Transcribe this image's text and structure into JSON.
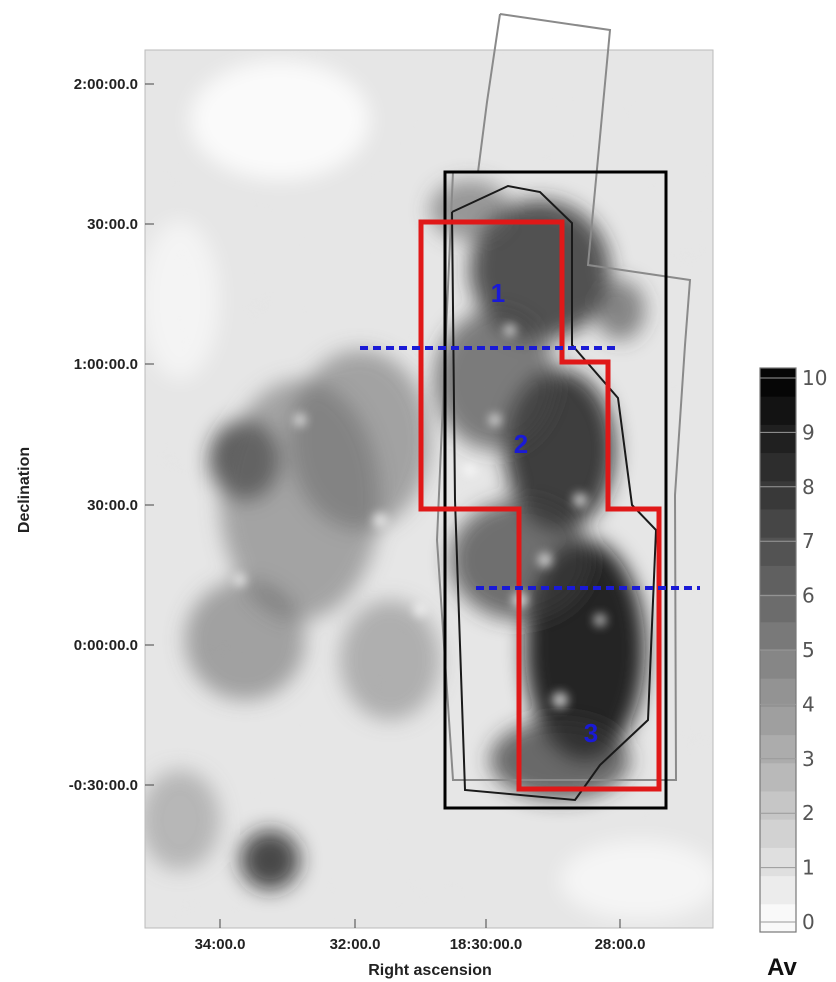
{
  "map": {
    "ylabel": "Declination",
    "xlabel": "Right ascension",
    "yticks": [
      "2:00:00.0",
      "30:00.0",
      "1:00:00.0",
      "30:00.0",
      "0:00:00.0",
      "-0:30:00.0"
    ],
    "xticks": [
      "34:00.0",
      "32:00.0",
      "18:30:00.0",
      "28:00.0"
    ],
    "regions": [
      "1",
      "2",
      "3"
    ],
    "colors": {
      "region_outline": "#e01818",
      "region_label": "#1a1ad6",
      "divider": "#1a1ad6",
      "survey_box": "#000000",
      "footprint_thin": "#1a1a1a",
      "footprint_gray": "#8a8a8a"
    }
  },
  "colorbar": {
    "label": "Av",
    "ticks": [
      "10",
      "9",
      "8",
      "7",
      "6",
      "5",
      "4",
      "3",
      "2",
      "1",
      "0"
    ],
    "min": 0,
    "max": 10
  }
}
